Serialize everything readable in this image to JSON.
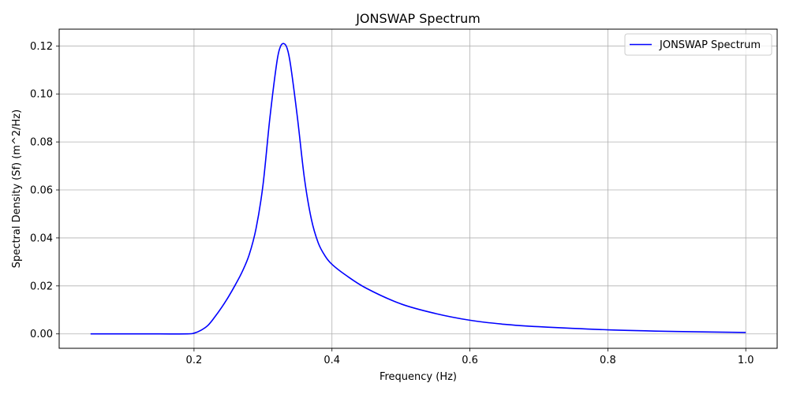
{
  "chart_data": {
    "type": "line",
    "title": "JONSWAP Spectrum",
    "xlabel": "Frequency (Hz)",
    "ylabel": "Spectral Density (Sf) (m^2/Hz)",
    "xlim": [
      0.0045,
      1.0455
    ],
    "ylim": [
      -0.006,
      0.127
    ],
    "xticks": [
      0.2,
      0.4,
      0.6,
      0.8,
      1.0
    ],
    "xtick_labels": [
      "0.2",
      "0.4",
      "0.6",
      "0.8",
      "1.0"
    ],
    "yticks": [
      0.0,
      0.02,
      0.04,
      0.06,
      0.08,
      0.1,
      0.12
    ],
    "ytick_labels": [
      "0.00",
      "0.02",
      "0.04",
      "0.06",
      "0.08",
      "0.10",
      "0.12"
    ],
    "grid": true,
    "legend_position": "top-right",
    "series": [
      {
        "name": "JONSWAP Spectrum",
        "color": "#0000ff",
        "x": [
          0.05,
          0.1,
          0.15,
          0.19,
          0.2,
          0.21,
          0.22,
          0.23,
          0.24,
          0.25,
          0.26,
          0.27,
          0.28,
          0.29,
          0.3,
          0.31,
          0.32,
          0.325,
          0.33,
          0.335,
          0.34,
          0.35,
          0.36,
          0.37,
          0.38,
          0.39,
          0.4,
          0.42,
          0.45,
          0.5,
          0.55,
          0.6,
          0.65,
          0.7,
          0.8,
          0.9,
          1.0
        ],
        "values": [
          0.0,
          0.0,
          0.0,
          0.0,
          0.0003,
          0.0015,
          0.0035,
          0.007,
          0.011,
          0.0155,
          0.0205,
          0.026,
          0.033,
          0.044,
          0.062,
          0.09,
          0.113,
          0.1195,
          0.121,
          0.119,
          0.112,
          0.09,
          0.065,
          0.048,
          0.038,
          0.0325,
          0.029,
          0.0245,
          0.019,
          0.0125,
          0.0085,
          0.0057,
          0.004,
          0.003,
          0.0017,
          0.001,
          0.0006
        ]
      }
    ]
  }
}
